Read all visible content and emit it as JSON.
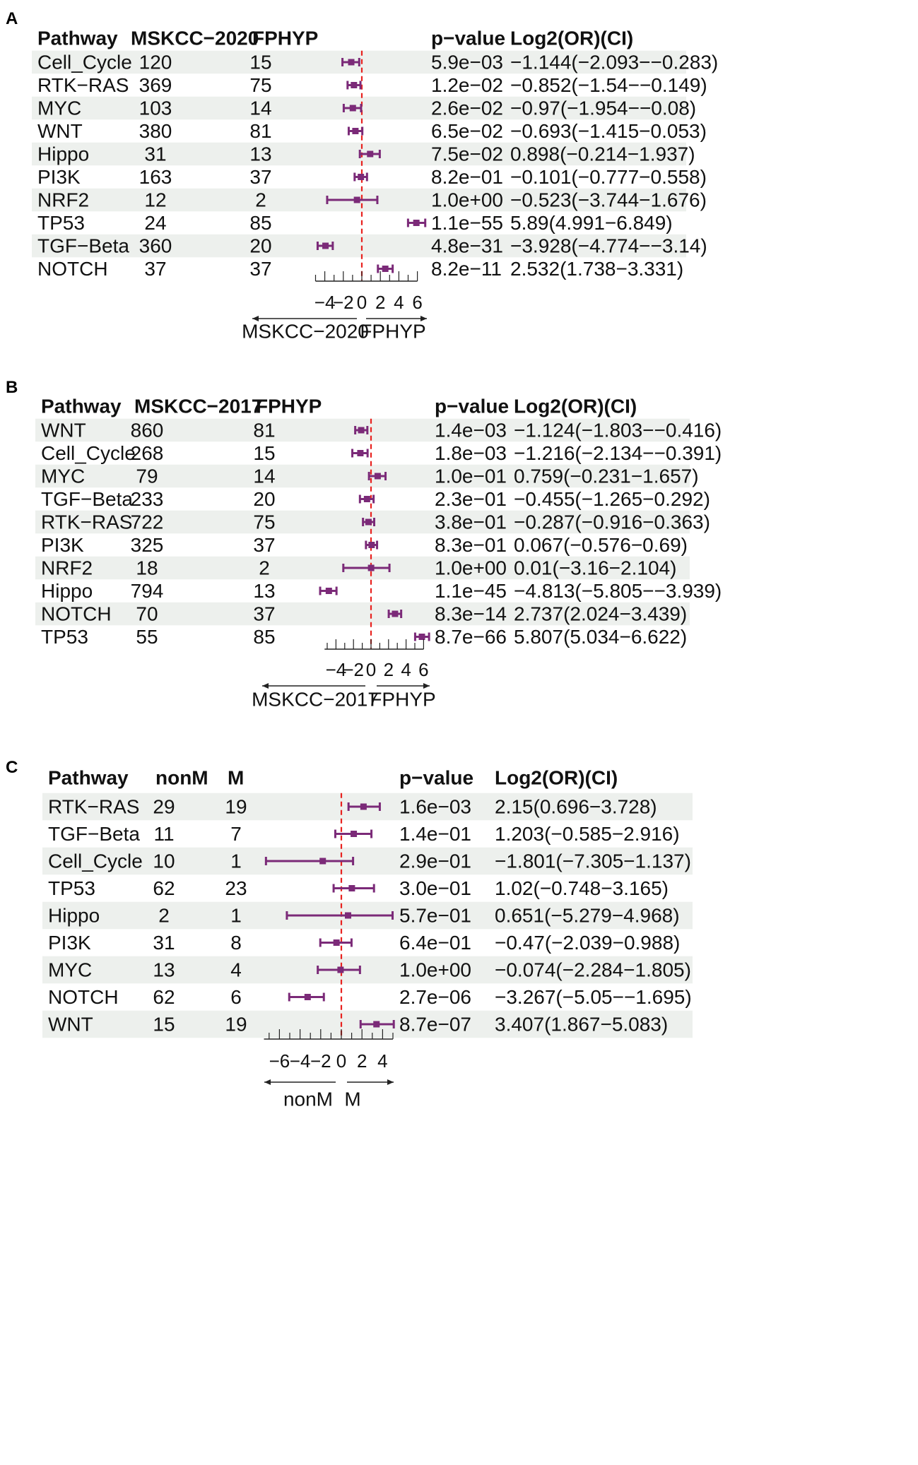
{
  "chart_data": [
    {
      "type": "forest",
      "panel": "A",
      "columns": [
        "Pathway",
        "MSKCC−2020",
        "FPHYP",
        "p−value",
        "Log2(OR)(CI)"
      ],
      "rows": [
        {
          "pathway": "Cell_Cycle",
          "n1": "120",
          "n2": "15",
          "p": "5.9e−03",
          "ci_text": "−1.144(−2.093−−0.283)",
          "est": -1.144,
          "lo": -2.093,
          "hi": -0.283
        },
        {
          "pathway": "RTK−RAS",
          "n1": "369",
          "n2": "75",
          "p": "1.2e−02",
          "ci_text": "−0.852(−1.54−−0.149)",
          "est": -0.852,
          "lo": -1.54,
          "hi": -0.149
        },
        {
          "pathway": "MYC",
          "n1": "103",
          "n2": "14",
          "p": "2.6e−02",
          "ci_text": "−0.97(−1.954−−0.08)",
          "est": -0.97,
          "lo": -1.954,
          "hi": -0.08
        },
        {
          "pathway": "WNT",
          "n1": "380",
          "n2": "81",
          "p": "6.5e−02",
          "ci_text": "−0.693(−1.415−0.053)",
          "est": -0.693,
          "lo": -1.415,
          "hi": 0.053
        },
        {
          "pathway": "Hippo",
          "n1": "31",
          "n2": "13",
          "p": "7.5e−02",
          "ci_text": "0.898(−0.214−1.937)",
          "est": 0.898,
          "lo": -0.214,
          "hi": 1.937
        },
        {
          "pathway": "PI3K",
          "n1": "163",
          "n2": "37",
          "p": "8.2e−01",
          "ci_text": "−0.101(−0.777−0.558)",
          "est": -0.101,
          "lo": -0.777,
          "hi": 0.558
        },
        {
          "pathway": "NRF2",
          "n1": "12",
          "n2": "2",
          "p": "1.0e+00",
          "ci_text": "−0.523(−3.744−1.676)",
          "est": -0.523,
          "lo": -3.744,
          "hi": 1.676
        },
        {
          "pathway": "TP53",
          "n1": "24",
          "n2": "85",
          "p": "1.1e−55",
          "ci_text": "5.89(4.991−6.849)",
          "est": 5.89,
          "lo": 4.991,
          "hi": 6.849
        },
        {
          "pathway": "TGF−Beta",
          "n1": "360",
          "n2": "20",
          "p": "4.8e−31",
          "ci_text": "−3.928(−4.774−−3.14)",
          "est": -3.928,
          "lo": -4.774,
          "hi": -3.14
        },
        {
          "pathway": "NOTCH",
          "n1": "37",
          "n2": "37",
          "p": "8.2e−11",
          "ci_text": "2.532(1.738−3.331)",
          "est": 2.532,
          "lo": 1.738,
          "hi": 3.331
        }
      ],
      "xticks": [
        -4,
        -2,
        0,
        2,
        4,
        6
      ],
      "xtick_labels": [
        "−4",
        "−2",
        "0",
        "2",
        "4",
        "6"
      ],
      "xlim": [
        -5,
        6
      ],
      "left_label": "MSKCC−2020",
      "right_label": "FPHYP"
    },
    {
      "type": "forest",
      "panel": "B",
      "columns": [
        "Pathway",
        "MSKCC−2017",
        "FPHYP",
        "p−value",
        "Log2(OR)(CI)"
      ],
      "rows": [
        {
          "pathway": "WNT",
          "n1": "860",
          "n2": "81",
          "p": "1.4e−03",
          "ci_text": "−1.124(−1.803−−0.416)",
          "est": -1.124,
          "lo": -1.803,
          "hi": -0.416
        },
        {
          "pathway": "Cell_Cycle",
          "n1": "268",
          "n2": "15",
          "p": "1.8e−03",
          "ci_text": "−1.216(−2.134−−0.391)",
          "est": -1.216,
          "lo": -2.134,
          "hi": -0.391
        },
        {
          "pathway": "MYC",
          "n1": "79",
          "n2": "14",
          "p": "1.0e−01",
          "ci_text": "0.759(−0.231−1.657)",
          "est": 0.759,
          "lo": -0.231,
          "hi": 1.657
        },
        {
          "pathway": "TGF−Beta",
          "n1": "233",
          "n2": "20",
          "p": "2.3e−01",
          "ci_text": "−0.455(−1.265−0.292)",
          "est": -0.455,
          "lo": -1.265,
          "hi": 0.292
        },
        {
          "pathway": "RTK−RAS",
          "n1": "722",
          "n2": "75",
          "p": "3.8e−01",
          "ci_text": "−0.287(−0.916−0.363)",
          "est": -0.287,
          "lo": -0.916,
          "hi": 0.363
        },
        {
          "pathway": "PI3K",
          "n1": "325",
          "n2": "37",
          "p": "8.3e−01",
          "ci_text": "0.067(−0.576−0.69)",
          "est": 0.067,
          "lo": -0.576,
          "hi": 0.69
        },
        {
          "pathway": "NRF2",
          "n1": "18",
          "n2": "2",
          "p": "1.0e+00",
          "ci_text": "0.01(−3.16−2.104)",
          "est": 0.01,
          "lo": -3.16,
          "hi": 2.104
        },
        {
          "pathway": "Hippo",
          "n1": "794",
          "n2": "13",
          "p": "1.1e−45",
          "ci_text": "−4.813(−5.805−−3.939)",
          "est": -4.813,
          "lo": -5.805,
          "hi": -3.939
        },
        {
          "pathway": "NOTCH",
          "n1": "70",
          "n2": "37",
          "p": "8.3e−14",
          "ci_text": "2.737(2.024−3.439)",
          "est": 2.737,
          "lo": 2.024,
          "hi": 3.439
        },
        {
          "pathway": "TP53",
          "n1": "55",
          "n2": "85",
          "p": "8.7e−66",
          "ci_text": "5.807(5.034−6.622)",
          "est": 5.807,
          "lo": 5.034,
          "hi": 6.622
        }
      ],
      "xticks": [
        -4,
        -2,
        0,
        2,
        4,
        6
      ],
      "xtick_labels": [
        "−4",
        "−2",
        "0",
        "2",
        "4",
        "6"
      ],
      "xlim": [
        -5.3,
        6
      ],
      "left_label": "MSKCC−2017",
      "right_label": "FPHYP"
    },
    {
      "type": "forest",
      "panel": "C",
      "columns": [
        "Pathway",
        "nonM",
        "M",
        "p−value",
        "Log2(OR)(CI)"
      ],
      "rows": [
        {
          "pathway": "RTK−RAS",
          "n1": "29",
          "n2": "19",
          "p": "1.6e−03",
          "ci_text": "2.15(0.696−3.728)",
          "est": 2.15,
          "lo": 0.696,
          "hi": 3.728
        },
        {
          "pathway": "TGF−Beta",
          "n1": "11",
          "n2": "7",
          "p": "1.4e−01",
          "ci_text": "1.203(−0.585−2.916)",
          "est": 1.203,
          "lo": -0.585,
          "hi": 2.916
        },
        {
          "pathway": "Cell_Cycle",
          "n1": "10",
          "n2": "1",
          "p": "2.9e−01",
          "ci_text": "−1.801(−7.305−1.137)",
          "est": -1.801,
          "lo": -7.305,
          "hi": 1.137
        },
        {
          "pathway": "TP53",
          "n1": "62",
          "n2": "23",
          "p": "3.0e−01",
          "ci_text": "1.02(−0.748−3.165)",
          "est": 1.02,
          "lo": -0.748,
          "hi": 3.165
        },
        {
          "pathway": "Hippo",
          "n1": "2",
          "n2": "1",
          "p": "5.7e−01",
          "ci_text": "0.651(−5.279−4.968)",
          "est": 0.651,
          "lo": -5.279,
          "hi": 4.968
        },
        {
          "pathway": "PI3K",
          "n1": "31",
          "n2": "8",
          "p": "6.4e−01",
          "ci_text": "−0.47(−2.039−0.988)",
          "est": -0.47,
          "lo": -2.039,
          "hi": 0.988
        },
        {
          "pathway": "MYC",
          "n1": "13",
          "n2": "4",
          "p": "1.0e+00",
          "ci_text": "−0.074(−2.284−1.805)",
          "est": -0.074,
          "lo": -2.284,
          "hi": 1.805
        },
        {
          "pathway": "NOTCH",
          "n1": "62",
          "n2": "6",
          "p": "2.7e−06",
          "ci_text": "−3.267(−5.05−−1.695)",
          "est": -3.267,
          "lo": -5.05,
          "hi": -1.695
        },
        {
          "pathway": "WNT",
          "n1": "15",
          "n2": "19",
          "p": "8.7e−07",
          "ci_text": "3.407(1.867−5.083)",
          "est": 3.407,
          "lo": 1.867,
          "hi": 5.083
        }
      ],
      "xticks": [
        -6,
        -4,
        -2,
        0,
        2,
        4
      ],
      "xtick_labels": [
        "−6",
        "−4",
        "−2",
        "0",
        "2",
        "4"
      ],
      "xlim": [
        -7.5,
        5
      ],
      "left_label": "nonM",
      "right_label": "M"
    }
  ],
  "panel_labels": [
    "A",
    "B",
    "C"
  ],
  "colors": {
    "ci": "#7b2a78",
    "ref_line": "#e8221f",
    "row_shade": "#edf0ed",
    "text": "#111111"
  }
}
